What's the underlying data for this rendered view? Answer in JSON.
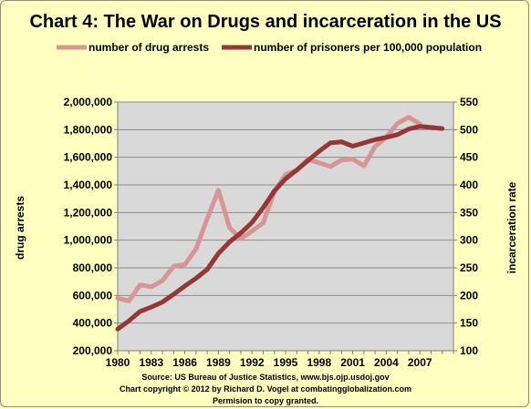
{
  "chart_data": {
    "type": "line",
    "title": "Chart 4: The War on Drugs and incarceration in the US",
    "ylabel_left": "drug  arrests",
    "ylabel_right": "incarceration rate",
    "x_ticks": [
      "1980",
      "1983",
      "1986",
      "1989",
      "1992",
      "1995",
      "1998",
      "2001",
      "2004",
      "2007"
    ],
    "y_left_ticks": [
      "200,000",
      "400,000",
      "600,000",
      "800,000",
      "1,000,000",
      "1,200,000",
      "1,400,000",
      "1,600,000",
      "1,800,000",
      "2,000,000"
    ],
    "y_right_ticks": [
      "100",
      "150",
      "200",
      "250",
      "300",
      "350",
      "400",
      "450",
      "500",
      "550"
    ],
    "ylim_left": [
      200000,
      2000000
    ],
    "ylim_right": [
      100,
      550
    ],
    "xlim": [
      1980,
      2010
    ],
    "grid": true,
    "legend_position": "top",
    "series": [
      {
        "name": "number of drug arrests",
        "axis": "left",
        "color": "#d99594",
        "x": [
          1980,
          1981,
          1982,
          1983,
          1984,
          1985,
          1986,
          1987,
          1988,
          1989,
          1990,
          1991,
          1992,
          1993,
          1994,
          1995,
          1996,
          1997,
          1998,
          1999,
          2000,
          2001,
          2002,
          2003,
          2004,
          2005,
          2006,
          2007
        ],
        "values": [
          580000,
          560000,
          676000,
          662000,
          708000,
          811000,
          824000,
          937000,
          1155000,
          1362000,
          1090000,
          1010000,
          1066000,
          1126000,
          1351000,
          1476000,
          1506000,
          1584000,
          1560000,
          1533000,
          1580000,
          1587000,
          1538000,
          1678000,
          1746000,
          1846000,
          1890000,
          1842000
        ]
      },
      {
        "name": "number of prisoners per 100,000 population",
        "axis": "right",
        "color": "#953735",
        "x": [
          1980,
          1981,
          1982,
          1983,
          1984,
          1985,
          1986,
          1987,
          1988,
          1989,
          1990,
          1991,
          1992,
          1993,
          1994,
          1995,
          1996,
          1997,
          1998,
          1999,
          2000,
          2001,
          2002,
          2003,
          2004,
          2005,
          2006,
          2007,
          2008,
          2009
        ],
        "values": [
          139,
          154,
          171,
          179,
          188,
          202,
          217,
          231,
          247,
          276,
          297,
          313,
          332,
          359,
          389,
          411,
          427,
          444,
          461,
          476,
          478,
          470,
          476,
          482,
          486,
          491,
          501,
          506,
          504,
          502
        ]
      }
    ]
  },
  "footer": {
    "line1": "Source: US Bureau of Justice Statistics, www.bjs.ojp.usdoj.gov",
    "line2": "Chart copyright © 2012 by Richard D. Vogel at combatingglobalization.com",
    "line3": "Permision to copy granted."
  }
}
